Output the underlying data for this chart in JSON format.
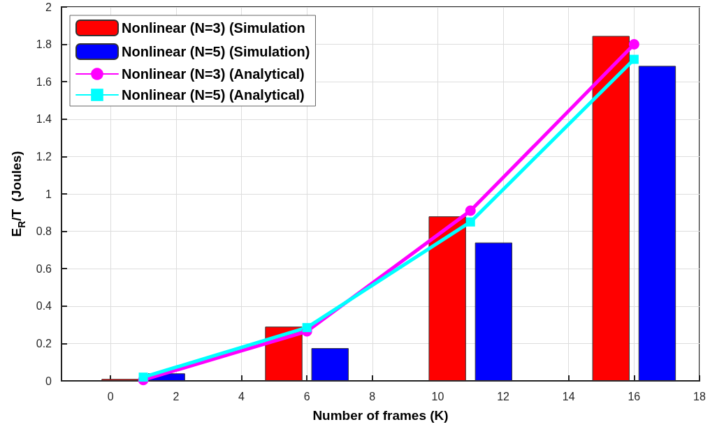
{
  "chart_data": {
    "type": "bar",
    "xlabel": "Number of frames (K)",
    "ylabel": "E$_{R}$/T  (Joules)",
    "x": [
      1,
      6,
      11,
      16
    ],
    "series": [
      {
        "name": "Nonlinear (N=3) (Simulation",
        "color": "#ff0000",
        "values": [
          0.01,
          0.29,
          0.88,
          1.845
        ]
      },
      {
        "name": "Nonlinear (N=5) (Simulation)",
        "color": "#0000ff",
        "values": [
          0.04,
          0.175,
          0.74,
          1.685
        ]
      },
      {
        "name": "Nonlinear (N=3) (Analytical)",
        "type": "line",
        "marker": "circle",
        "color": "#ff00ff",
        "values": [
          0.005,
          0.265,
          0.91,
          1.8
        ]
      },
      {
        "name": "Nonlinear (N=5) (Analytical)",
        "type": "line",
        "marker": "square",
        "color": "#00ffff",
        "values": [
          0.02,
          0.285,
          0.85,
          1.72
        ]
      }
    ],
    "xlim": [
      -1.5,
      18
    ],
    "xticks": [
      0,
      2,
      4,
      6,
      8,
      10,
      12,
      14,
      16,
      18
    ],
    "ylim": [
      0,
      2
    ],
    "yticks": [
      0,
      0.2,
      0.4,
      0.6,
      0.8,
      1,
      1.2,
      1.4,
      1.6,
      1.8,
      2
    ],
    "grid": true,
    "legend": "top left"
  }
}
